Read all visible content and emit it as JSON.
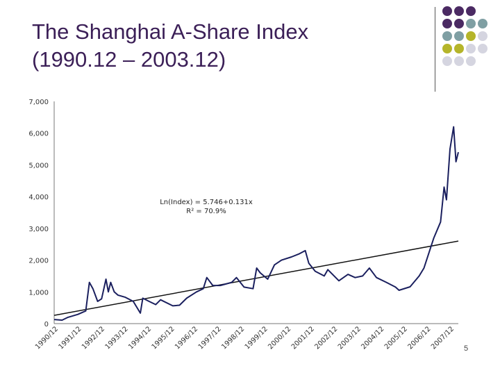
{
  "slide": {
    "title_line1": "The Shanghai A-Share Index",
    "title_line2": "(1990.12 – 2003.12)",
    "page_number": "5"
  },
  "decoration": {
    "dot_colors": [
      "#4b2a63",
      "#7f9fa3",
      "#b5b52a",
      "#d5d5e0"
    ],
    "dot_grid": [
      [
        0,
        0,
        0,
        -1
      ],
      [
        0,
        0,
        1,
        1
      ],
      [
        1,
        1,
        2,
        3
      ],
      [
        2,
        2,
        3,
        3
      ],
      [
        3,
        3,
        3,
        -1
      ]
    ]
  },
  "chart_data": {
    "type": "line",
    "title": "",
    "xlabel": "",
    "ylabel": "",
    "ylim": [
      0,
      7000
    ],
    "yticks": [
      "0",
      "1,000",
      "2,000",
      "3,000",
      "4,000",
      "5,000",
      "6,000",
      "7,000"
    ],
    "x_categories": [
      "1990/12",
      "1991/12",
      "1992/12",
      "1993/12",
      "1994/12",
      "1995/12",
      "1996/12",
      "1997/12",
      "1998/12",
      "1999/12",
      "2000/12",
      "2001/12",
      "2002/12",
      "2003/12",
      "2004/12",
      "2005/12",
      "2006/12",
      "2007/12"
    ],
    "grid": false,
    "line_color": "#1a1f5e",
    "series": [
      {
        "values": [
          [
            1990.917,
            130
          ],
          [
            1991.25,
            110
          ],
          [
            1991.5,
            200
          ],
          [
            1991.917,
            290
          ],
          [
            1992.25,
            400
          ],
          [
            1992.4,
            1300
          ],
          [
            1992.55,
            1100
          ],
          [
            1992.75,
            700
          ],
          [
            1992.917,
            780
          ],
          [
            1993.1,
            1400
          ],
          [
            1993.2,
            1000
          ],
          [
            1993.3,
            1300
          ],
          [
            1993.45,
            1000
          ],
          [
            1993.6,
            900
          ],
          [
            1993.917,
            830
          ],
          [
            1994.25,
            700
          ],
          [
            1994.55,
            330
          ],
          [
            1994.65,
            800
          ],
          [
            1994.917,
            700
          ],
          [
            1995.2,
            600
          ],
          [
            1995.4,
            750
          ],
          [
            1995.917,
            560
          ],
          [
            1996.2,
            580
          ],
          [
            1996.5,
            800
          ],
          [
            1996.917,
            1000
          ],
          [
            1997.2,
            1100
          ],
          [
            1997.35,
            1450
          ],
          [
            1997.6,
            1200
          ],
          [
            1997.917,
            1200
          ],
          [
            1998.4,
            1300
          ],
          [
            1998.6,
            1450
          ],
          [
            1998.917,
            1150
          ],
          [
            1999.3,
            1100
          ],
          [
            1999.45,
            1750
          ],
          [
            1999.6,
            1600
          ],
          [
            1999.917,
            1400
          ],
          [
            2000.2,
            1850
          ],
          [
            2000.5,
            2000
          ],
          [
            2000.917,
            2100
          ],
          [
            2001.25,
            2200
          ],
          [
            2001.5,
            2300
          ],
          [
            2001.65,
            1900
          ],
          [
            2001.917,
            1650
          ],
          [
            2002.3,
            1500
          ],
          [
            2002.45,
            1700
          ],
          [
            2002.917,
            1350
          ],
          [
            2003.3,
            1550
          ],
          [
            2003.6,
            1450
          ],
          [
            2003.917,
            1500
          ],
          [
            2004.2,
            1750
          ],
          [
            2004.5,
            1450
          ],
          [
            2004.917,
            1300
          ],
          [
            2005.3,
            1150
          ],
          [
            2005.45,
            1050
          ],
          [
            2005.917,
            1160
          ],
          [
            2006.3,
            1500
          ],
          [
            2006.5,
            1750
          ],
          [
            2006.917,
            2700
          ],
          [
            2007.2,
            3200
          ],
          [
            2007.35,
            4300
          ],
          [
            2007.45,
            3900
          ],
          [
            2007.6,
            5500
          ],
          [
            2007.75,
            6200
          ],
          [
            2007.85,
            5100
          ],
          [
            2007.95,
            5400
          ]
        ]
      }
    ],
    "trend_line": {
      "values": [
        [
          1990.917,
          260
        ],
        [
          2007.95,
          2600
        ]
      ]
    },
    "annotation": {
      "line1": "Ln(Index) = 5.746+0.131x",
      "line2": "R² = 70.9%"
    }
  }
}
